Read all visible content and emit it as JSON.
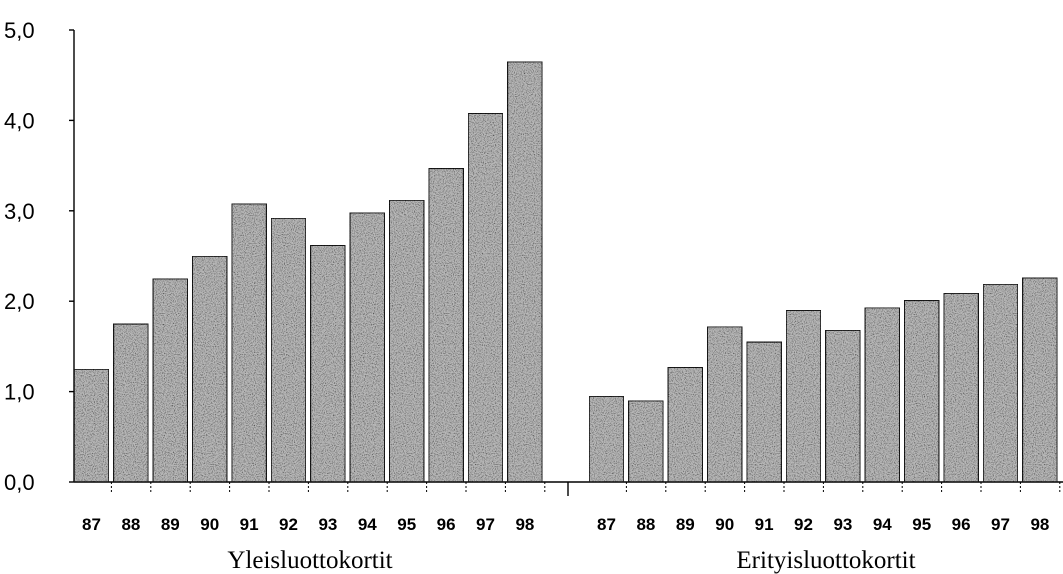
{
  "chart_data": {
    "type": "bar",
    "title": "",
    "xlabel": "",
    "ylabel": "",
    "ylim": [
      0,
      5
    ],
    "yticks": [
      0,
      1,
      2,
      3,
      4,
      5
    ],
    "ytick_labels": [
      "0,0",
      "1,0",
      "2,0",
      "3,0",
      "4,0",
      "5,0"
    ],
    "grid": false,
    "bar_color": "#b8b8b8",
    "bar_texture": "stippled grey",
    "groups": [
      {
        "name": "Yleisluottokortit",
        "categories": [
          "87",
          "88",
          "89",
          "90",
          "91",
          "92",
          "93",
          "94",
          "95",
          "96",
          "97",
          "98"
        ],
        "values": [
          1.25,
          1.75,
          2.25,
          2.5,
          3.08,
          2.92,
          2.62,
          2.98,
          3.12,
          3.47,
          4.08,
          4.65
        ]
      },
      {
        "name": "Erityisluottokortit",
        "categories": [
          "87",
          "88",
          "89",
          "90",
          "91",
          "92",
          "93",
          "94",
          "95",
          "96",
          "97",
          "98"
        ],
        "values": [
          0.95,
          0.9,
          1.27,
          1.72,
          1.55,
          1.9,
          1.68,
          1.93,
          2.01,
          2.09,
          2.19,
          2.26
        ]
      }
    ]
  }
}
